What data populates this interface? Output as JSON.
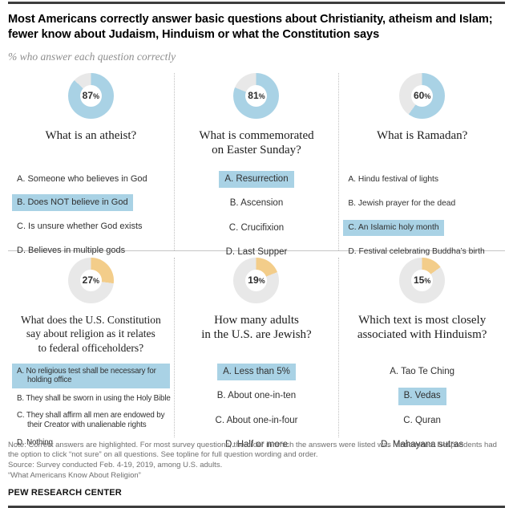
{
  "header": {
    "title": "Most Americans correctly answer basic questions about Christianity, atheism and Islam; fewer know about Judaism, Hinduism or what the Constitution says",
    "subtitle": "% who answer each question correctly"
  },
  "labels": {
    "percent_sign": "%"
  },
  "colors": {
    "blue": "#a9d2e5",
    "gold": "#f3cd8a",
    "track": "#e8e8e8",
    "highlight": "#a9d2e5",
    "rule_dark": "#3d3d3d"
  },
  "cards": [
    {
      "percent": 87,
      "question": "What is an atheist?",
      "slice_color": "#a9d2e5",
      "options": [
        {
          "label": "A. Someone who believes in God",
          "correct": false
        },
        {
          "label": "B. Does NOT believe in God",
          "correct": true
        },
        {
          "label": "C. Is unsure whether God exists",
          "correct": false
        },
        {
          "label": "D. Believes in multiple gods",
          "correct": false
        }
      ]
    },
    {
      "percent": 81,
      "question": "What is commemorated\non Easter Sunday?",
      "slice_color": "#a9d2e5",
      "options": [
        {
          "label": "A. Resurrection",
          "correct": true
        },
        {
          "label": "B. Ascension",
          "correct": false
        },
        {
          "label": "C. Crucifixion",
          "correct": false
        },
        {
          "label": "D. Last Supper",
          "correct": false
        }
      ]
    },
    {
      "percent": 60,
      "question": "What is Ramadan?",
      "slice_color": "#a9d2e5",
      "options": [
        {
          "label": "A. Hindu festival of lights",
          "correct": false
        },
        {
          "label": "B. Jewish prayer for the dead",
          "correct": false
        },
        {
          "label": "C. An Islamic holy month",
          "correct": true
        },
        {
          "label": "D. Festival celebrating Buddha’s birth",
          "correct": false
        }
      ]
    },
    {
      "percent": 27,
      "question": "What does the U.S. Constitution\nsay about religion as it relates\nto federal officeholders?",
      "slice_color": "#f3cd8a",
      "options": [
        {
          "label": "A. No religious test shall be necessary for holding office",
          "correct": true
        },
        {
          "label": "B. They shall be sworn in using the Holy Bible",
          "correct": false
        },
        {
          "label": "C. They shall affirm all men are endowed by their Creator with unalienable rights",
          "correct": false
        },
        {
          "label": "D. Nothing",
          "correct": false
        }
      ]
    },
    {
      "percent": 19,
      "question": "How many adults\nin the U.S. are Jewish?",
      "slice_color": "#f3cd8a",
      "options": [
        {
          "label": "A. Less than 5%",
          "correct": true
        },
        {
          "label": "B. About one-in-ten",
          "correct": false
        },
        {
          "label": "C. About one-in-four",
          "correct": false
        },
        {
          "label": "D. Half or more",
          "correct": false
        }
      ]
    },
    {
      "percent": 15,
      "question": "Which text is most closely\nassociated with Hinduism?",
      "slice_color": "#f3cd8a",
      "options": [
        {
          "label": "A. Tao Te Ching",
          "correct": false
        },
        {
          "label": "B. Vedas",
          "correct": true
        },
        {
          "label": "C. Quran",
          "correct": false
        },
        {
          "label": "D. Mahayana sutras",
          "correct": false
        }
      ]
    }
  ],
  "chart_data": {
    "type": "pie",
    "subtype": "donut",
    "unit": "% who answer each question correctly",
    "legend_position": "none",
    "charts": [
      {
        "title": "What is an atheist?",
        "values": [
          87,
          13
        ],
        "categories": [
          "Correct",
          "Other"
        ],
        "label": "87%",
        "slice_color": "#a9d2e5",
        "correct_answer": "B. Does NOT believe in God"
      },
      {
        "title": "What is commemorated on Easter Sunday?",
        "values": [
          81,
          19
        ],
        "categories": [
          "Correct",
          "Other"
        ],
        "label": "81%",
        "slice_color": "#a9d2e5",
        "correct_answer": "A. Resurrection"
      },
      {
        "title": "What is Ramadan?",
        "values": [
          60,
          40
        ],
        "categories": [
          "Correct",
          "Other"
        ],
        "label": "60%",
        "slice_color": "#a9d2e5",
        "correct_answer": "C. An Islamic holy month"
      },
      {
        "title": "What does the U.S. Constitution say about religion as it relates to federal officeholders?",
        "values": [
          27,
          73
        ],
        "categories": [
          "Correct",
          "Other"
        ],
        "label": "27%",
        "slice_color": "#f3cd8a",
        "correct_answer": "A. No religious test shall be necessary for holding office"
      },
      {
        "title": "How many adults in the U.S. are Jewish?",
        "values": [
          19,
          81
        ],
        "categories": [
          "Correct",
          "Other"
        ],
        "label": "19%",
        "slice_color": "#f3cd8a",
        "correct_answer": "A. Less than 5%"
      },
      {
        "title": "Which text is most closely associated with Hinduism?",
        "values": [
          15,
          85
        ],
        "categories": [
          "Correct",
          "Other"
        ],
        "label": "15%",
        "slice_color": "#f3cd8a",
        "correct_answer": "B. Vedas"
      }
    ]
  },
  "footer": {
    "note": "Note: Correct answers are highlighted. For most survey questions, the order in which the answers were listed was randomized. Respondents had the option to click “not sure” on all questions. See topline for full question wording and order.",
    "source": "Source: Survey conducted Feb. 4-19, 2019, among U.S. adults.",
    "report": "“What Americans Know About Religion”",
    "brand": "PEW RESEARCH CENTER"
  }
}
